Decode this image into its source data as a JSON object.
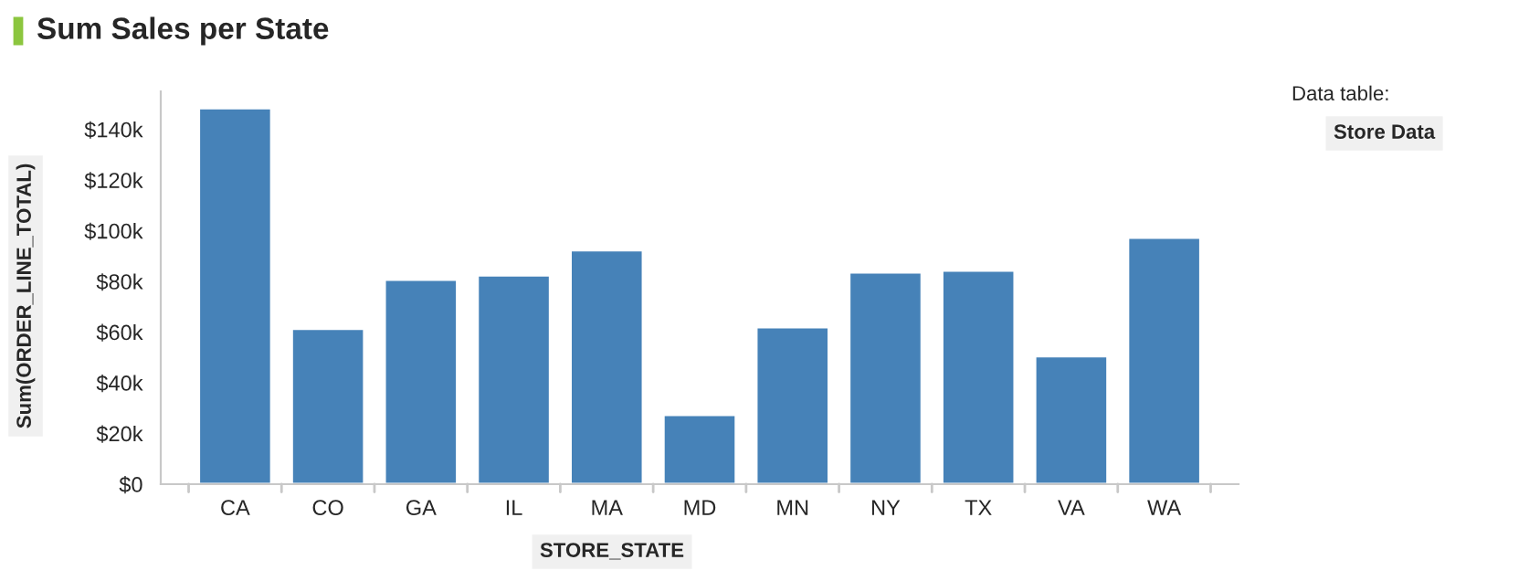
{
  "chart_data": {
    "type": "bar",
    "title": "Sum Sales per State",
    "xlabel": "STORE_STATE",
    "ylabel": "Sum(ORDER_LINE_TOTAL)",
    "categories": [
      "CA",
      "CO",
      "GA",
      "IL",
      "MA",
      "MD",
      "MN",
      "NY",
      "TX",
      "VA",
      "WA"
    ],
    "values": [
      148400,
      61300,
      80700,
      82400,
      92300,
      27400,
      62000,
      83600,
      84300,
      50500,
      97300
    ],
    "color": "#4682b8",
    "ylim": [
      0,
      155000
    ],
    "yticks": [
      {
        "value": 0,
        "label": "$0"
      },
      {
        "value": 20000,
        "label": "$20k"
      },
      {
        "value": 40000,
        "label": "$40k"
      },
      {
        "value": 60000,
        "label": "$60k"
      },
      {
        "value": 80000,
        "label": "$80k"
      },
      {
        "value": 100000,
        "label": "$100k"
      },
      {
        "value": 120000,
        "label": "$120k"
      },
      {
        "value": 140000,
        "label": "$140k"
      }
    ],
    "grid": false,
    "legend": false,
    "annotations": [
      "Data table:",
      "Store Data"
    ]
  }
}
